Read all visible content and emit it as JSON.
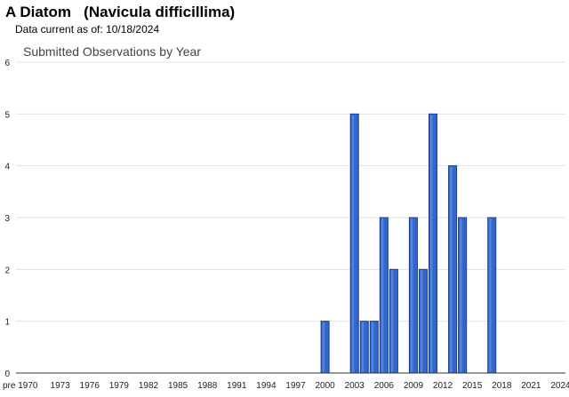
{
  "header": {
    "common_name": "A Diatom",
    "scientific_name": "(Navicula difficillima)",
    "data_current_label": "Data current as of:",
    "data_current_date": "10/18/2024"
  },
  "chart_data": {
    "type": "bar",
    "title": "Submitted Observations by Year",
    "xlabel": "",
    "ylabel": "",
    "ylim": [
      0,
      6
    ],
    "yticks": [
      0,
      1,
      2,
      3,
      4,
      5,
      6
    ],
    "grid": true,
    "legend": "none",
    "bar_color": "#3366cc",
    "bar_edge_color": "#1c3f94",
    "categories": [
      "pre 1970",
      "1970",
      "1971",
      "1972",
      "1973",
      "1974",
      "1975",
      "1976",
      "1977",
      "1978",
      "1979",
      "1980",
      "1981",
      "1982",
      "1983",
      "1984",
      "1985",
      "1986",
      "1987",
      "1988",
      "1989",
      "1990",
      "1991",
      "1992",
      "1993",
      "1994",
      "1995",
      "1996",
      "1997",
      "1998",
      "1999",
      "2000",
      "2001",
      "2002",
      "2003",
      "2004",
      "2005",
      "2006",
      "2007",
      "2008",
      "2009",
      "2010",
      "2011",
      "2012",
      "2013",
      "2014",
      "2015",
      "2016",
      "2017",
      "2018",
      "2019",
      "2020",
      "2021",
      "2022",
      "2023",
      "2024"
    ],
    "values": [
      0,
      0,
      0,
      0,
      0,
      0,
      0,
      0,
      0,
      0,
      0,
      0,
      0,
      0,
      0,
      0,
      0,
      0,
      0,
      0,
      0,
      0,
      0,
      0,
      0,
      0,
      0,
      0,
      0,
      0,
      0,
      1,
      0,
      0,
      5,
      1,
      1,
      3,
      2,
      0,
      3,
      2,
      5,
      0,
      4,
      3,
      0,
      0,
      3,
      0,
      0,
      0,
      0,
      0,
      0,
      0
    ],
    "tick_labels": [
      "pre 1970",
      "1973",
      "1976",
      "1979",
      "1982",
      "1985",
      "1988",
      "1991",
      "1994",
      "1997",
      "2000",
      "2003",
      "2006",
      "2009",
      "2012",
      "2015",
      "2018",
      "2021",
      "2024"
    ]
  }
}
